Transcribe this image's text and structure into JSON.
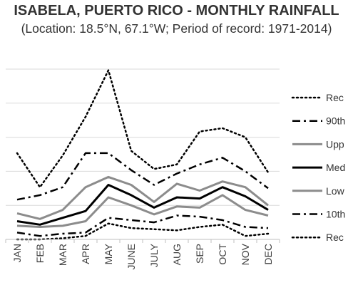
{
  "chart_data": {
    "type": "line",
    "title": "ISABELA, PUERTO RICO - MONTHLY RAINFALL",
    "subtitle": "(Location: 18.5°N, 67.1°W; Period of record: 1971-2014)",
    "xlabel": "",
    "ylabel": "",
    "categories": [
      "JAN",
      "FEB",
      "MAR",
      "APR",
      "MAY",
      "JUNE",
      "JULY",
      "AUG",
      "SEP",
      "OCT",
      "NOV",
      "DEC"
    ],
    "ylim": [
      0,
      15
    ],
    "grid": true,
    "legend_position": "right",
    "series": [
      {
        "name": "Rec",
        "legend_label": "Rec",
        "color": "#000000",
        "width": 2.5,
        "dash": "2,4",
        "cap": "round",
        "values": [
          7.6,
          4.6,
          7.4,
          10.8,
          14.9,
          7.8,
          6.2,
          6.6,
          9.5,
          9.8,
          9.0,
          5.9
        ]
      },
      {
        "name": "90th",
        "legend_label": "90th",
        "color": "#000000",
        "width": 2.5,
        "dash": "11,5,3,5",
        "cap": "butt",
        "values": [
          3.5,
          3.9,
          4.6,
          7.6,
          7.6,
          6.1,
          4.8,
          5.8,
          6.6,
          7.2,
          6.0,
          4.5
        ]
      },
      {
        "name": "Upp",
        "legend_label": "Upp",
        "color": "#8c8c8c",
        "width": 3,
        "dash": "",
        "cap": "butt",
        "values": [
          2.3,
          1.8,
          2.6,
          4.6,
          5.5,
          4.8,
          3.3,
          4.9,
          4.3,
          5.1,
          4.6,
          3.0
        ]
      },
      {
        "name": "Med",
        "legend_label": "Med",
        "color": "#000000",
        "width": 3,
        "dash": "",
        "cap": "butt",
        "values": [
          1.6,
          1.3,
          1.9,
          2.5,
          4.8,
          3.9,
          2.8,
          3.7,
          3.6,
          4.6,
          3.8,
          2.6
        ]
      },
      {
        "name": "Low",
        "legend_label": "Low",
        "color": "#8c8c8c",
        "width": 3,
        "dash": "",
        "cap": "butt",
        "values": [
          1.2,
          1.1,
          1.2,
          1.6,
          3.7,
          3.0,
          2.2,
          2.9,
          2.8,
          3.9,
          2.6,
          2.1
        ]
      },
      {
        "name": "10th",
        "legend_label": "10th",
        "color": "#000000",
        "width": 2.5,
        "dash": "11,5,3,5",
        "cap": "butt",
        "values": [
          0.6,
          0.3,
          0.5,
          0.6,
          1.9,
          1.7,
          1.5,
          2.1,
          2.0,
          1.7,
          1.1,
          1.0
        ]
      },
      {
        "name": "Rec",
        "legend_label": "Rec",
        "color": "#000000",
        "width": 2.5,
        "dash": "2,4",
        "cap": "round",
        "values": [
          0.0,
          0.0,
          0.1,
          0.3,
          1.4,
          1.0,
          0.9,
          0.8,
          1.1,
          1.3,
          0.3,
          0.5
        ]
      }
    ]
  }
}
